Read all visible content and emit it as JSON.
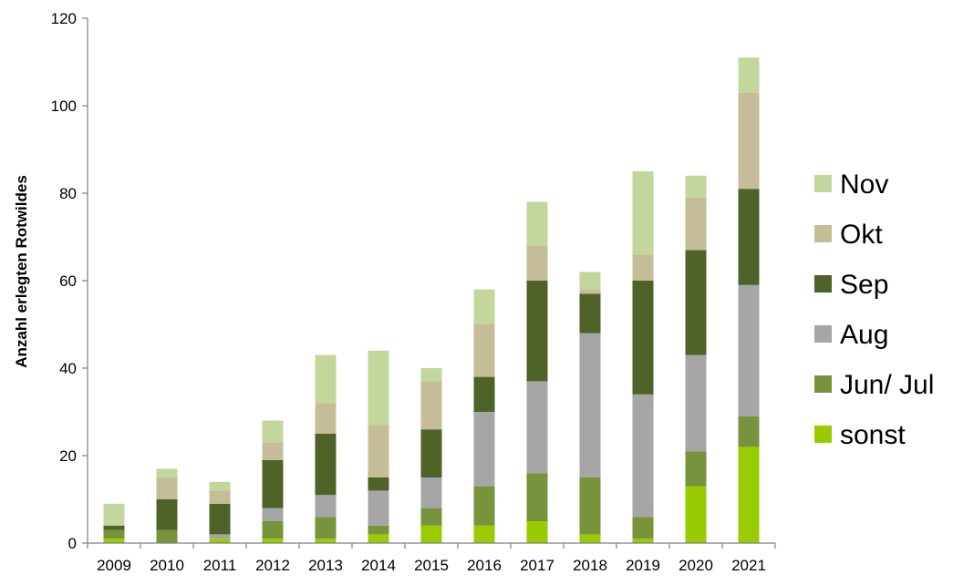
{
  "chart_data": {
    "type": "bar",
    "stacked": true,
    "title": "",
    "xlabel": "",
    "ylabel": "Anzahl erlegten Rotwildes",
    "ylim": [
      0,
      120
    ],
    "yticks": [
      0,
      20,
      40,
      60,
      80,
      100,
      120
    ],
    "grid": false,
    "legend_position": "right",
    "categories": [
      "2009",
      "2010",
      "2011",
      "2012",
      "2013",
      "2014",
      "2015",
      "2016",
      "2017",
      "2018",
      "2019",
      "2020",
      "2021"
    ],
    "series": [
      {
        "name": "sonst",
        "color": "#99cc00",
        "values": [
          1,
          0,
          1,
          1,
          1,
          2,
          4,
          4,
          5,
          2,
          1,
          13,
          22
        ]
      },
      {
        "name": "Jun/ Jul",
        "color": "#77933c",
        "values": [
          2,
          3,
          0,
          4,
          5,
          2,
          4,
          9,
          11,
          13,
          5,
          8,
          7
        ]
      },
      {
        "name": "Aug",
        "color": "#a6a6a6",
        "values": [
          0,
          0,
          1,
          3,
          5,
          8,
          7,
          17,
          21,
          33,
          28,
          22,
          30
        ]
      },
      {
        "name": "Sep",
        "color": "#4f6228",
        "values": [
          1,
          7,
          7,
          11,
          14,
          3,
          11,
          8,
          23,
          9,
          26,
          24,
          22
        ]
      },
      {
        "name": "Okt",
        "color": "#c4bd97",
        "values": [
          0,
          5,
          3,
          4,
          7,
          12,
          11,
          12,
          8,
          1,
          6,
          12,
          22
        ]
      },
      {
        "name": "Nov",
        "color": "#c3d69b",
        "values": [
          5,
          2,
          2,
          5,
          11,
          17,
          3,
          8,
          10,
          4,
          19,
          5,
          8
        ]
      }
    ]
  }
}
